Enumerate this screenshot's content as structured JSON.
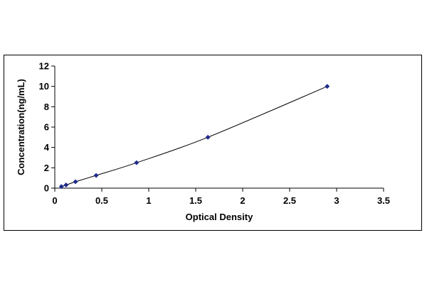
{
  "chart_data": {
    "type": "scatter",
    "title": "",
    "xlabel": "Optical Density",
    "ylabel": "Concentration(ng/mL)",
    "xlim": [
      0,
      3.5
    ],
    "ylim": [
      0,
      12
    ],
    "x_ticks": [
      0,
      0.5,
      1,
      1.5,
      2,
      2.5,
      3,
      3.5
    ],
    "x_tick_labels": [
      "0",
      "0.5",
      "1",
      "1.5",
      "2",
      "2.5",
      "3",
      "3.5"
    ],
    "y_ticks": [
      0,
      2,
      4,
      6,
      8,
      10,
      12
    ],
    "y_tick_labels": [
      "0",
      "2",
      "4",
      "6",
      "8",
      "10",
      "12"
    ],
    "grid": false,
    "legend": "none",
    "marker": "diamond",
    "color": "#1f2a8c",
    "series": [
      {
        "x": [
          0.07,
          0.12,
          0.22,
          0.44,
          0.87,
          1.63,
          2.9
        ],
        "y": [
          0.16,
          0.31,
          0.63,
          1.25,
          2.5,
          5,
          10
        ],
        "fit_line": true
      }
    ]
  }
}
